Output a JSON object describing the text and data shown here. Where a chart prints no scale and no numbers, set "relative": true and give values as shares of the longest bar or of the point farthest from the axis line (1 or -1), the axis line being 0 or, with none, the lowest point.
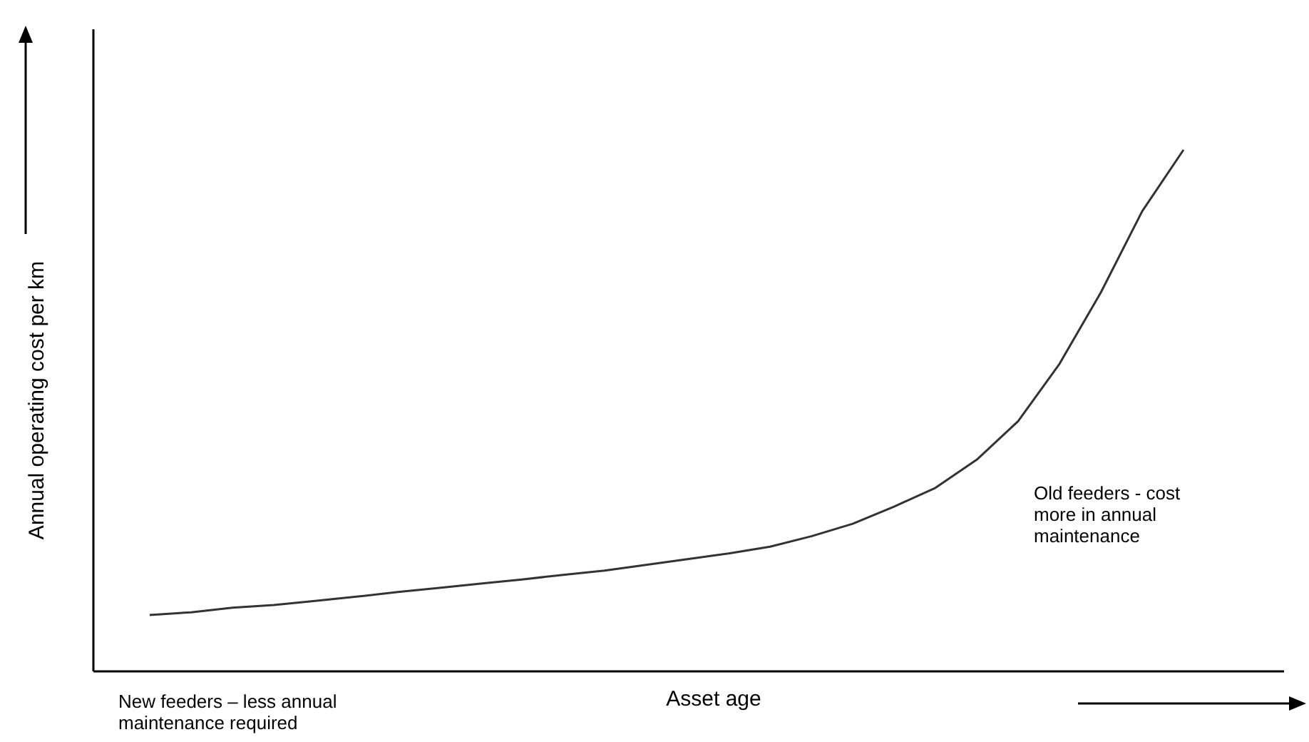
{
  "chart_data": {
    "type": "line",
    "relative": true,
    "xlabel": "Asset age",
    "ylabel": "Annual operating cost per km",
    "categories": [
      null,
      null,
      null,
      null,
      null,
      null,
      null,
      null,
      null,
      null,
      null,
      null,
      null,
      null,
      null,
      null,
      null,
      null,
      null,
      null,
      null,
      null,
      null,
      null,
      null,
      null
    ],
    "series": [
      {
        "color": "#333333",
        "values": [
          0.107,
          0.112,
          0.121,
          0.126,
          0.134,
          0.142,
          0.151,
          0.159,
          0.167,
          0.175,
          0.184,
          0.192,
          0.203,
          0.214,
          0.225,
          0.238,
          0.258,
          0.282,
          0.315,
          0.351,
          0.405,
          0.479,
          0.589,
          0.726,
          0.882,
          1
        ]
      }
    ],
    "annotations": [
      "New feeders – less annual maintenance required",
      "Old feeders - cost more in annual maintenance"
    ],
    "marker": "none",
    "line_style": "solid"
  }
}
